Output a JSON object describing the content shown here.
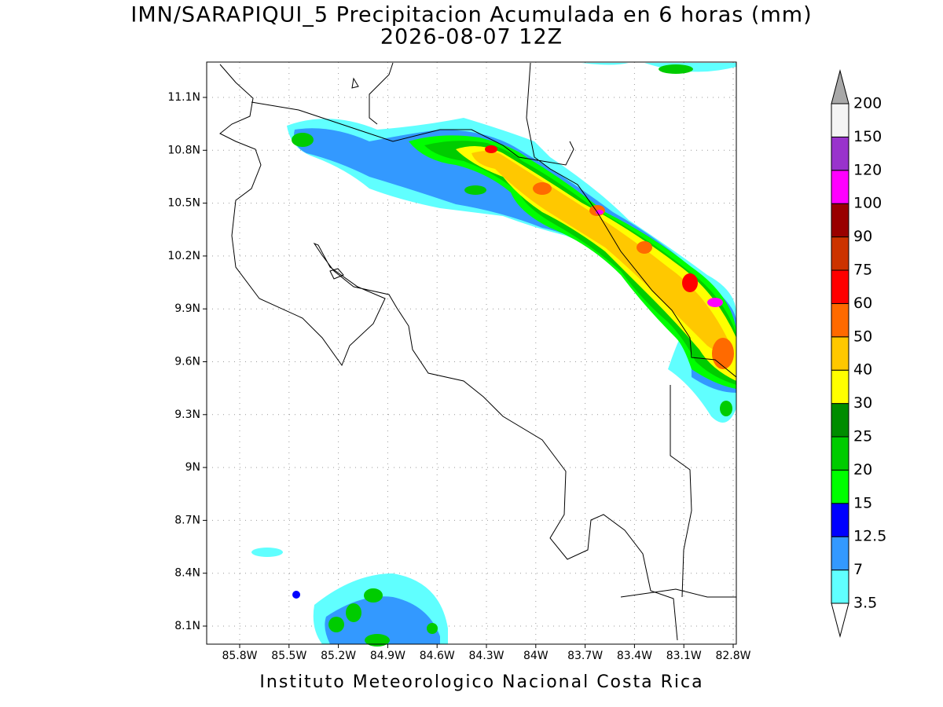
{
  "title": "IMN/SARAPIQUI_5 Precipitacion Acumulada en 6 horas (mm)",
  "subtitle": "2026-08-07 12Z",
  "map": {
    "lat_ticks": [
      {
        "value": 11.1,
        "label": "11.1N"
      },
      {
        "value": 10.8,
        "label": "10.8N"
      },
      {
        "value": 10.5,
        "label": "10.5N"
      },
      {
        "value": 10.2,
        "label": "10.2N"
      },
      {
        "value": 9.9,
        "label": "9.9N"
      },
      {
        "value": 9.6,
        "label": "9.6N"
      },
      {
        "value": 9.3,
        "label": "9.3N"
      },
      {
        "value": 9,
        "label": "9N"
      },
      {
        "value": 8.7,
        "label": "8.7N"
      },
      {
        "value": 8.4,
        "label": "8.4N"
      },
      {
        "value": 8.1,
        "label": "8.1N"
      }
    ],
    "lon_ticks": [
      {
        "value": -85.8,
        "label": "85.8W"
      },
      {
        "value": -85.5,
        "label": "85.5W"
      },
      {
        "value": -85.2,
        "label": "85.2W"
      },
      {
        "value": -84.9,
        "label": "84.9W"
      },
      {
        "value": -84.6,
        "label": "84.6W"
      },
      {
        "value": -84.3,
        "label": "84.3W"
      },
      {
        "value": -84,
        "label": "84W"
      },
      {
        "value": -83.7,
        "label": "83.7W"
      },
      {
        "value": -83.4,
        "label": "83.4W"
      },
      {
        "value": -83.1,
        "label": "83.1W"
      },
      {
        "value": -82.8,
        "label": "82.8W"
      }
    ],
    "grid": true
  },
  "colorbar": {
    "levels": [
      3.5,
      7,
      12.5,
      15,
      20,
      25,
      30,
      40,
      50,
      60,
      75,
      90,
      100,
      120,
      150,
      200
    ],
    "colors": [
      "#60ffff",
      "#3399ff",
      "#0000ff",
      "#00ff00",
      "#00cc00",
      "#008c00",
      "#ffff00",
      "#ffc800",
      "#ff6a00",
      "#ff0000",
      "#cc3300",
      "#990000",
      "#ff00ff",
      "#9933cc",
      "#f4f4f4"
    ],
    "under_color": "#ffffff",
    "over_color": "#a8a8a8"
  },
  "footer": "Instituto Meteorologico Nacional Costa Rica"
}
